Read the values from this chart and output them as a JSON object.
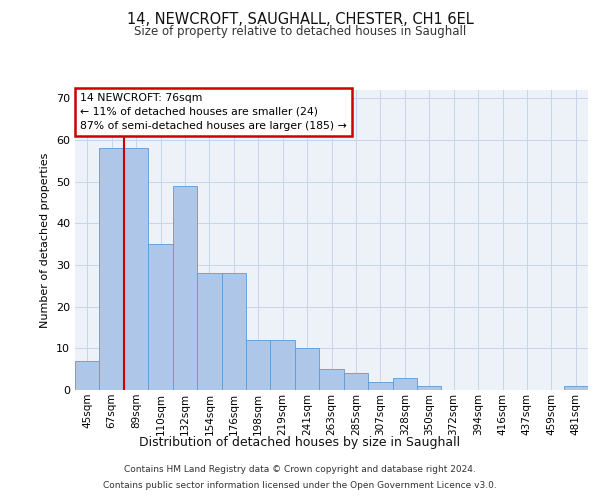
{
  "title1": "14, NEWCROFT, SAUGHALL, CHESTER, CH1 6EL",
  "title2": "Size of property relative to detached houses in Saughall",
  "xlabel": "Distribution of detached houses by size in Saughall",
  "ylabel": "Number of detached properties",
  "categories": [
    "45sqm",
    "67sqm",
    "89sqm",
    "110sqm",
    "132sqm",
    "154sqm",
    "176sqm",
    "198sqm",
    "219sqm",
    "241sqm",
    "263sqm",
    "285sqm",
    "307sqm",
    "328sqm",
    "350sqm",
    "372sqm",
    "394sqm",
    "416sqm",
    "437sqm",
    "459sqm",
    "481sqm"
  ],
  "bar_values": [
    7,
    58,
    58,
    35,
    49,
    28,
    28,
    12,
    12,
    10,
    5,
    4,
    2,
    3,
    1,
    0,
    0,
    0,
    0,
    0,
    1
  ],
  "bar_color": "#aec6e8",
  "bar_edge_color": "#5b9bd5",
  "grid_color": "#c8d4e8",
  "bg_color": "#edf1f8",
  "annotation_line1": "14 NEWCROFT: 76sqm",
  "annotation_line2": "← 11% of detached houses are smaller (24)",
  "annotation_line3": "87% of semi-detached houses are larger (185) →",
  "vline_x": 1.52,
  "vline_color": "#cc0000",
  "box_edge_color": "#cc0000",
  "ylim": [
    0,
    72
  ],
  "yticks": [
    0,
    10,
    20,
    30,
    40,
    50,
    60,
    70
  ],
  "footnote1": "Contains HM Land Registry data © Crown copyright and database right 2024.",
  "footnote2": "Contains public sector information licensed under the Open Government Licence v3.0."
}
